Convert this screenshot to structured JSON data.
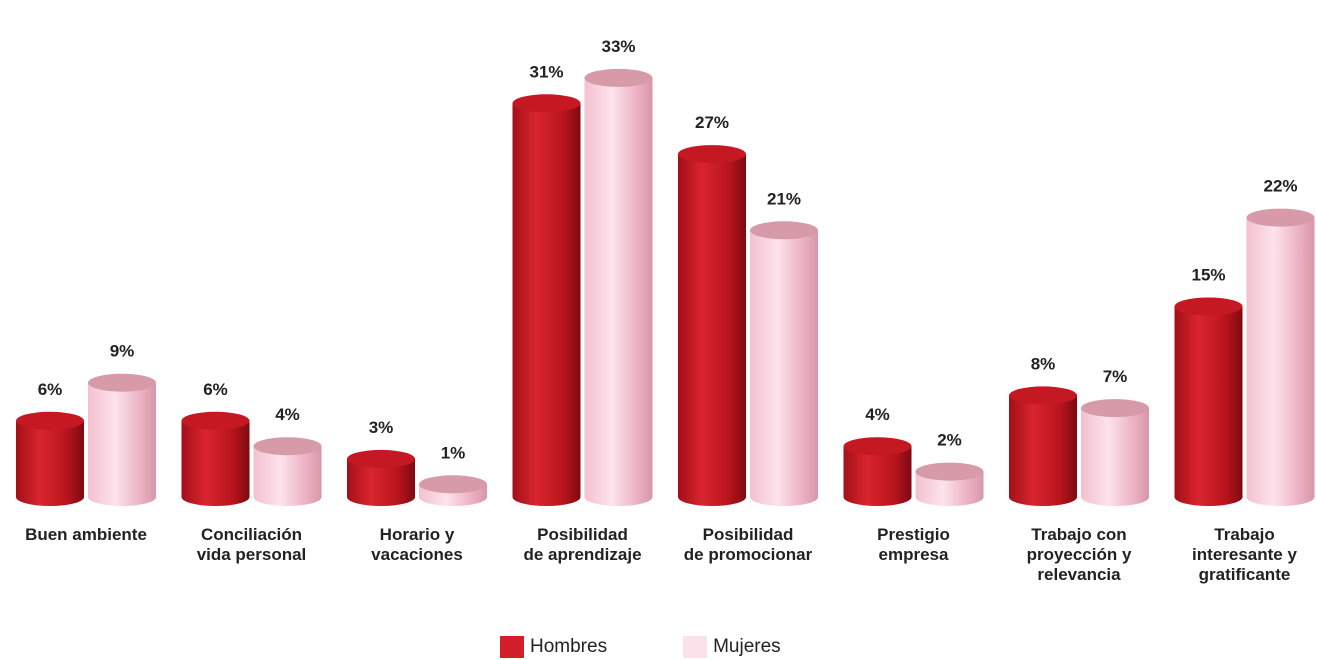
{
  "chart_data": {
    "type": "bar",
    "categories": [
      [
        "Buen ambiente"
      ],
      [
        "Conciliación",
        "vida personal"
      ],
      [
        "Horario y",
        "vacaciones"
      ],
      [
        "Posibilidad",
        "de aprendizaje"
      ],
      [
        "Posibilidad",
        "de promocionar"
      ],
      [
        "Prestigio",
        "empresa"
      ],
      [
        "Trabajo con",
        "proyección y",
        "relevancia"
      ],
      [
        "Trabajo",
        "interesante y",
        "gratificante"
      ]
    ],
    "series": [
      {
        "name": "Hombres",
        "values": [
          6,
          6,
          3,
          31,
          27,
          4,
          8,
          15
        ],
        "labels": [
          "6%",
          "6%",
          "3%",
          "31%",
          "27%",
          "4%",
          "8%",
          "15%"
        ],
        "color": "#d21f2a"
      },
      {
        "name": "Mujeres",
        "values": [
          9,
          4,
          1,
          33,
          21,
          2,
          7,
          22
        ],
        "labels": [
          "9%",
          "4%",
          "1%",
          "33%",
          "21%",
          "2%",
          "7%",
          "22%"
        ],
        "color": "#f7c9d8"
      }
    ],
    "unit": "%",
    "grid": false,
    "legend_position": "bottom"
  },
  "legend": {
    "hombres_label": "Hombres",
    "mujeres_label": "Mujeres"
  }
}
